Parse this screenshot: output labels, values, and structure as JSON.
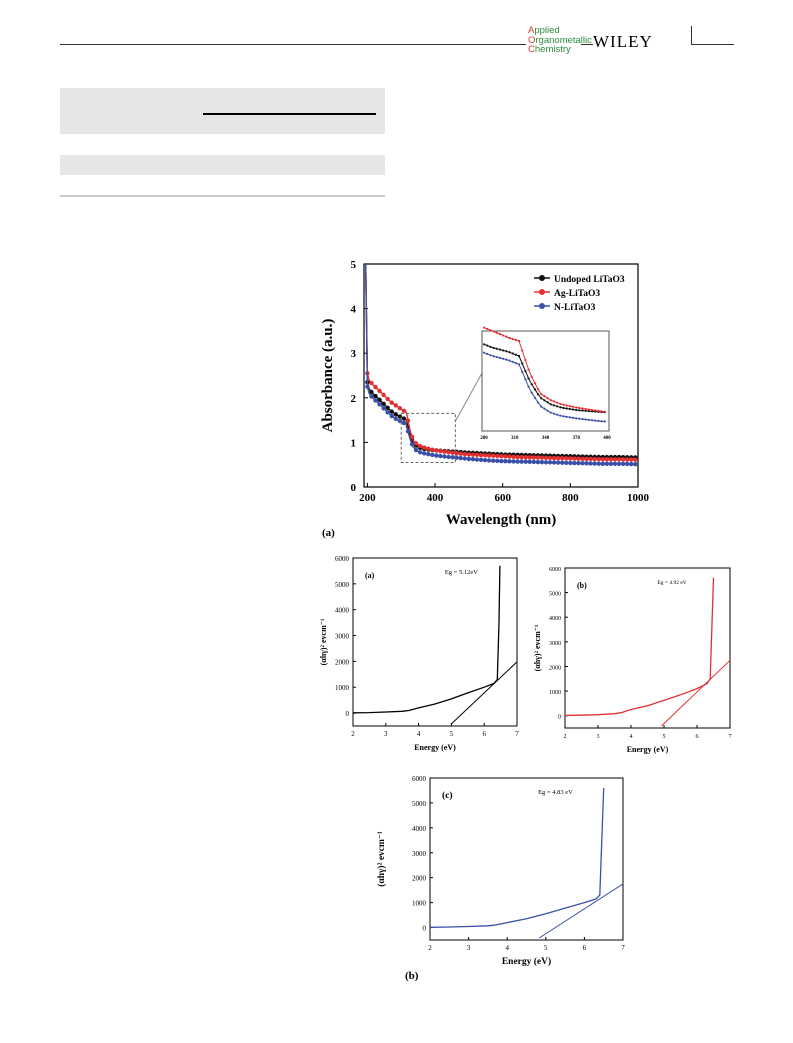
{
  "header": {
    "journal_lines": [
      {
        "initial": "A",
        "rest": "pplied"
      },
      {
        "initial": "O",
        "rest": "rganometallic"
      },
      {
        "initial": "C",
        "rest": "hemistry"
      }
    ],
    "publisher": "WILEY"
  },
  "figure_labels": {
    "top": "(a)",
    "bottom": "(b)"
  },
  "chart_data": [
    {
      "type": "line",
      "xlabel": "Wavelength (nm)",
      "ylabel": "Absorbance (a.u.)",
      "xlim": [
        190,
        1000
      ],
      "ylim": [
        0,
        5
      ],
      "xticks": [
        200,
        400,
        600,
        800,
        1000
      ],
      "yticks": [
        0,
        1,
        2,
        3,
        4,
        5
      ],
      "legend": "top-right",
      "series": [
        {
          "name": "Undoped LiTaO3",
          "color": "#111111",
          "x": [
            195,
            200,
            205,
            215,
            230,
            250,
            270,
            290,
            305,
            315,
            325,
            335,
            345,
            355,
            370,
            390,
            420,
            460,
            500,
            550,
            600,
            650,
            700,
            750,
            800,
            850,
            900,
            950,
            1000
          ],
          "y": [
            5.0,
            2.35,
            2.2,
            2.1,
            2.0,
            1.85,
            1.7,
            1.6,
            1.55,
            1.5,
            1.2,
            1.0,
            0.92,
            0.88,
            0.85,
            0.83,
            0.81,
            0.79,
            0.77,
            0.75,
            0.73,
            0.72,
            0.71,
            0.7,
            0.69,
            0.68,
            0.67,
            0.67,
            0.66
          ]
        },
        {
          "name": "Ag-LiTaO3",
          "color": "#e23030",
          "x": [
            195,
            200,
            205,
            215,
            230,
            250,
            270,
            290,
            305,
            315,
            325,
            335,
            345,
            355,
            370,
            390,
            420,
            460,
            500,
            550,
            600,
            650,
            700,
            750,
            800,
            850,
            900,
            950,
            1000
          ],
          "y": [
            5.0,
            2.55,
            2.4,
            2.3,
            2.2,
            2.05,
            1.9,
            1.8,
            1.72,
            1.68,
            1.3,
            1.05,
            0.97,
            0.92,
            0.88,
            0.84,
            0.8,
            0.76,
            0.73,
            0.71,
            0.69,
            0.67,
            0.66,
            0.65,
            0.64,
            0.63,
            0.62,
            0.62,
            0.61
          ]
        },
        {
          "name": "N-LiTaO3",
          "color": "#3a50a8",
          "x": [
            195,
            200,
            205,
            215,
            230,
            250,
            270,
            290,
            305,
            315,
            325,
            335,
            345,
            355,
            370,
            390,
            420,
            460,
            500,
            550,
            600,
            650,
            700,
            750,
            800,
            850,
            900,
            950,
            1000
          ],
          "y": [
            5.0,
            2.25,
            2.1,
            2.0,
            1.9,
            1.75,
            1.6,
            1.5,
            1.45,
            1.4,
            1.1,
            0.9,
            0.82,
            0.78,
            0.75,
            0.72,
            0.69,
            0.66,
            0.63,
            0.6,
            0.58,
            0.57,
            0.56,
            0.55,
            0.54,
            0.53,
            0.52,
            0.52,
            0.51
          ]
        }
      ],
      "inset": {
        "xticks": [
          "280",
          "310",
          "340",
          "370",
          "400"
        ],
        "zoom_region": {
          "x": [
            300,
            460
          ],
          "y": [
            0.55,
            1.65
          ]
        }
      }
    },
    {
      "type": "line",
      "panel": "(a)",
      "annotation": "Eg = 5.12eV",
      "color": "#000000",
      "xlabel": "Energy (eV)",
      "ylabel": "(αhγ)² evcm⁻¹",
      "xlim": [
        2,
        7
      ],
      "ylim": [
        0,
        6000
      ],
      "xticks": [
        2,
        3,
        4,
        5,
        6,
        7
      ],
      "yticks": [
        0,
        1000,
        2000,
        3000,
        4000,
        5000,
        6000
      ],
      "curve": {
        "x": [
          2,
          2.5,
          3,
          3.5,
          3.7,
          4,
          4.5,
          5,
          5.5,
          6,
          6.3,
          6.4,
          6.45,
          6.48
        ],
        "y": [
          10,
          20,
          40,
          70,
          100,
          200,
          350,
          550,
          780,
          1000,
          1150,
          1300,
          3500,
          5700
        ]
      },
      "tangent": {
        "x": [
          5.0,
          7.0
        ],
        "y": [
          -420,
          1980
        ]
      }
    },
    {
      "type": "line",
      "panel": "(b)",
      "annotation": "Eg = 4.92 eV",
      "color": "#e23030",
      "xlabel": "Energy (eV)",
      "ylabel": "(αhγ)² evcm⁻¹",
      "xlim": [
        2,
        7
      ],
      "ylim": [
        0,
        6000
      ],
      "xticks": [
        2,
        3,
        4,
        5,
        6,
        7
      ],
      "yticks": [
        0,
        1000,
        2000,
        3000,
        4000,
        5000,
        6000
      ],
      "curve": {
        "x": [
          2,
          2.5,
          3,
          3.5,
          3.7,
          4,
          4.5,
          5,
          5.5,
          6,
          6.3,
          6.4,
          6.45,
          6.5
        ],
        "y": [
          10,
          20,
          40,
          80,
          120,
          250,
          400,
          620,
          850,
          1100,
          1300,
          1500,
          3500,
          5600
        ]
      },
      "tangent": {
        "x": [
          4.92,
          7.0
        ],
        "y": [
          -420,
          2250
        ]
      }
    },
    {
      "type": "line",
      "panel": "(c)",
      "annotation": "Eg = 4.83 eV",
      "color": "#3a50a8",
      "xlabel": "Energy (eV)",
      "ylabel": "(αhγ)² evcm⁻¹",
      "xlim": [
        2,
        7
      ],
      "ylim": [
        0,
        6000
      ],
      "xticks": [
        2,
        3,
        4,
        5,
        6,
        7
      ],
      "yticks": [
        0,
        1000,
        2000,
        3000,
        4000,
        5000,
        6000
      ],
      "curve": {
        "x": [
          2,
          2.5,
          3,
          3.5,
          3.7,
          4,
          4.5,
          5,
          5.5,
          6,
          6.3,
          6.4,
          6.45,
          6.5
        ],
        "y": [
          10,
          20,
          40,
          70,
          100,
          200,
          350,
          550,
          780,
          1000,
          1150,
          1300,
          3500,
          5600
        ]
      },
      "tangent": {
        "x": [
          4.83,
          7.0
        ],
        "y": [
          -420,
          1750
        ]
      }
    }
  ]
}
